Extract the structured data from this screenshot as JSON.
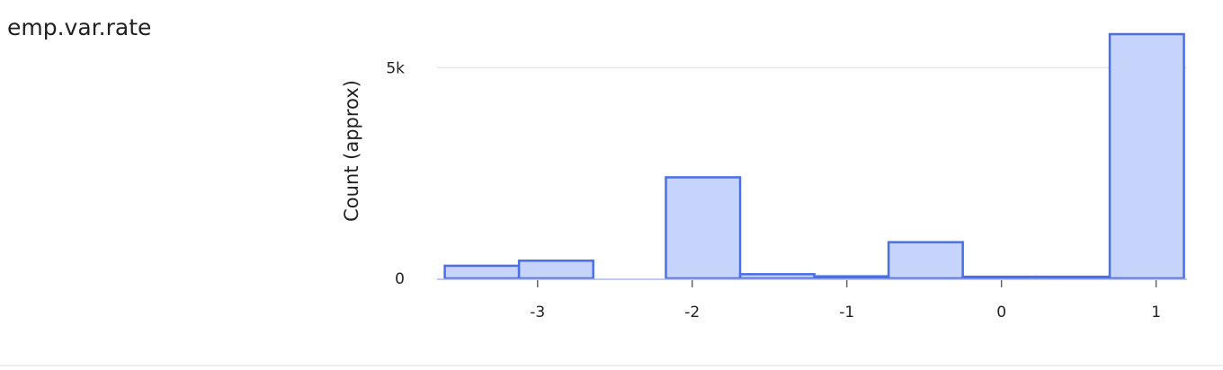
{
  "field": {
    "name": "emp.var.rate"
  },
  "chart_data": {
    "type": "bar",
    "title": "emp.var.rate",
    "xlabel": "",
    "ylabel": "Count (approx)",
    "x_ticks": [
      -3,
      -2,
      -1,
      0,
      1
    ],
    "x_tick_labels": [
      "-3",
      "-2",
      "-1",
      "0",
      "1"
    ],
    "y_ticks": [
      0,
      5000
    ],
    "y_tick_labels": [
      "0",
      "5k"
    ],
    "xlim": [
      -3.65,
      1.2
    ],
    "ylim": [
      0,
      5800
    ],
    "bins": [
      {
        "x0": -3.6,
        "x1": -3.12,
        "value": 300
      },
      {
        "x0": -3.12,
        "x1": -2.64,
        "value": 420
      },
      {
        "x0": -2.64,
        "x1": -2.17,
        "value": 0
      },
      {
        "x0": -2.17,
        "x1": -1.69,
        "value": 2400
      },
      {
        "x0": -1.69,
        "x1": -1.21,
        "value": 100
      },
      {
        "x0": -1.21,
        "x1": -0.73,
        "value": 50
      },
      {
        "x0": -0.73,
        "x1": -0.25,
        "value": 860
      },
      {
        "x0": -0.25,
        "x1": 0.22,
        "value": 40
      },
      {
        "x0": 0.22,
        "x1": 0.7,
        "value": 40
      },
      {
        "x0": 0.7,
        "x1": 1.18,
        "value": 5800
      }
    ],
    "colors": {
      "fill": "#c6d3fb",
      "stroke": "#4a6fe8",
      "grid": "#e6e6e6",
      "axis": "#aab8f0"
    }
  }
}
